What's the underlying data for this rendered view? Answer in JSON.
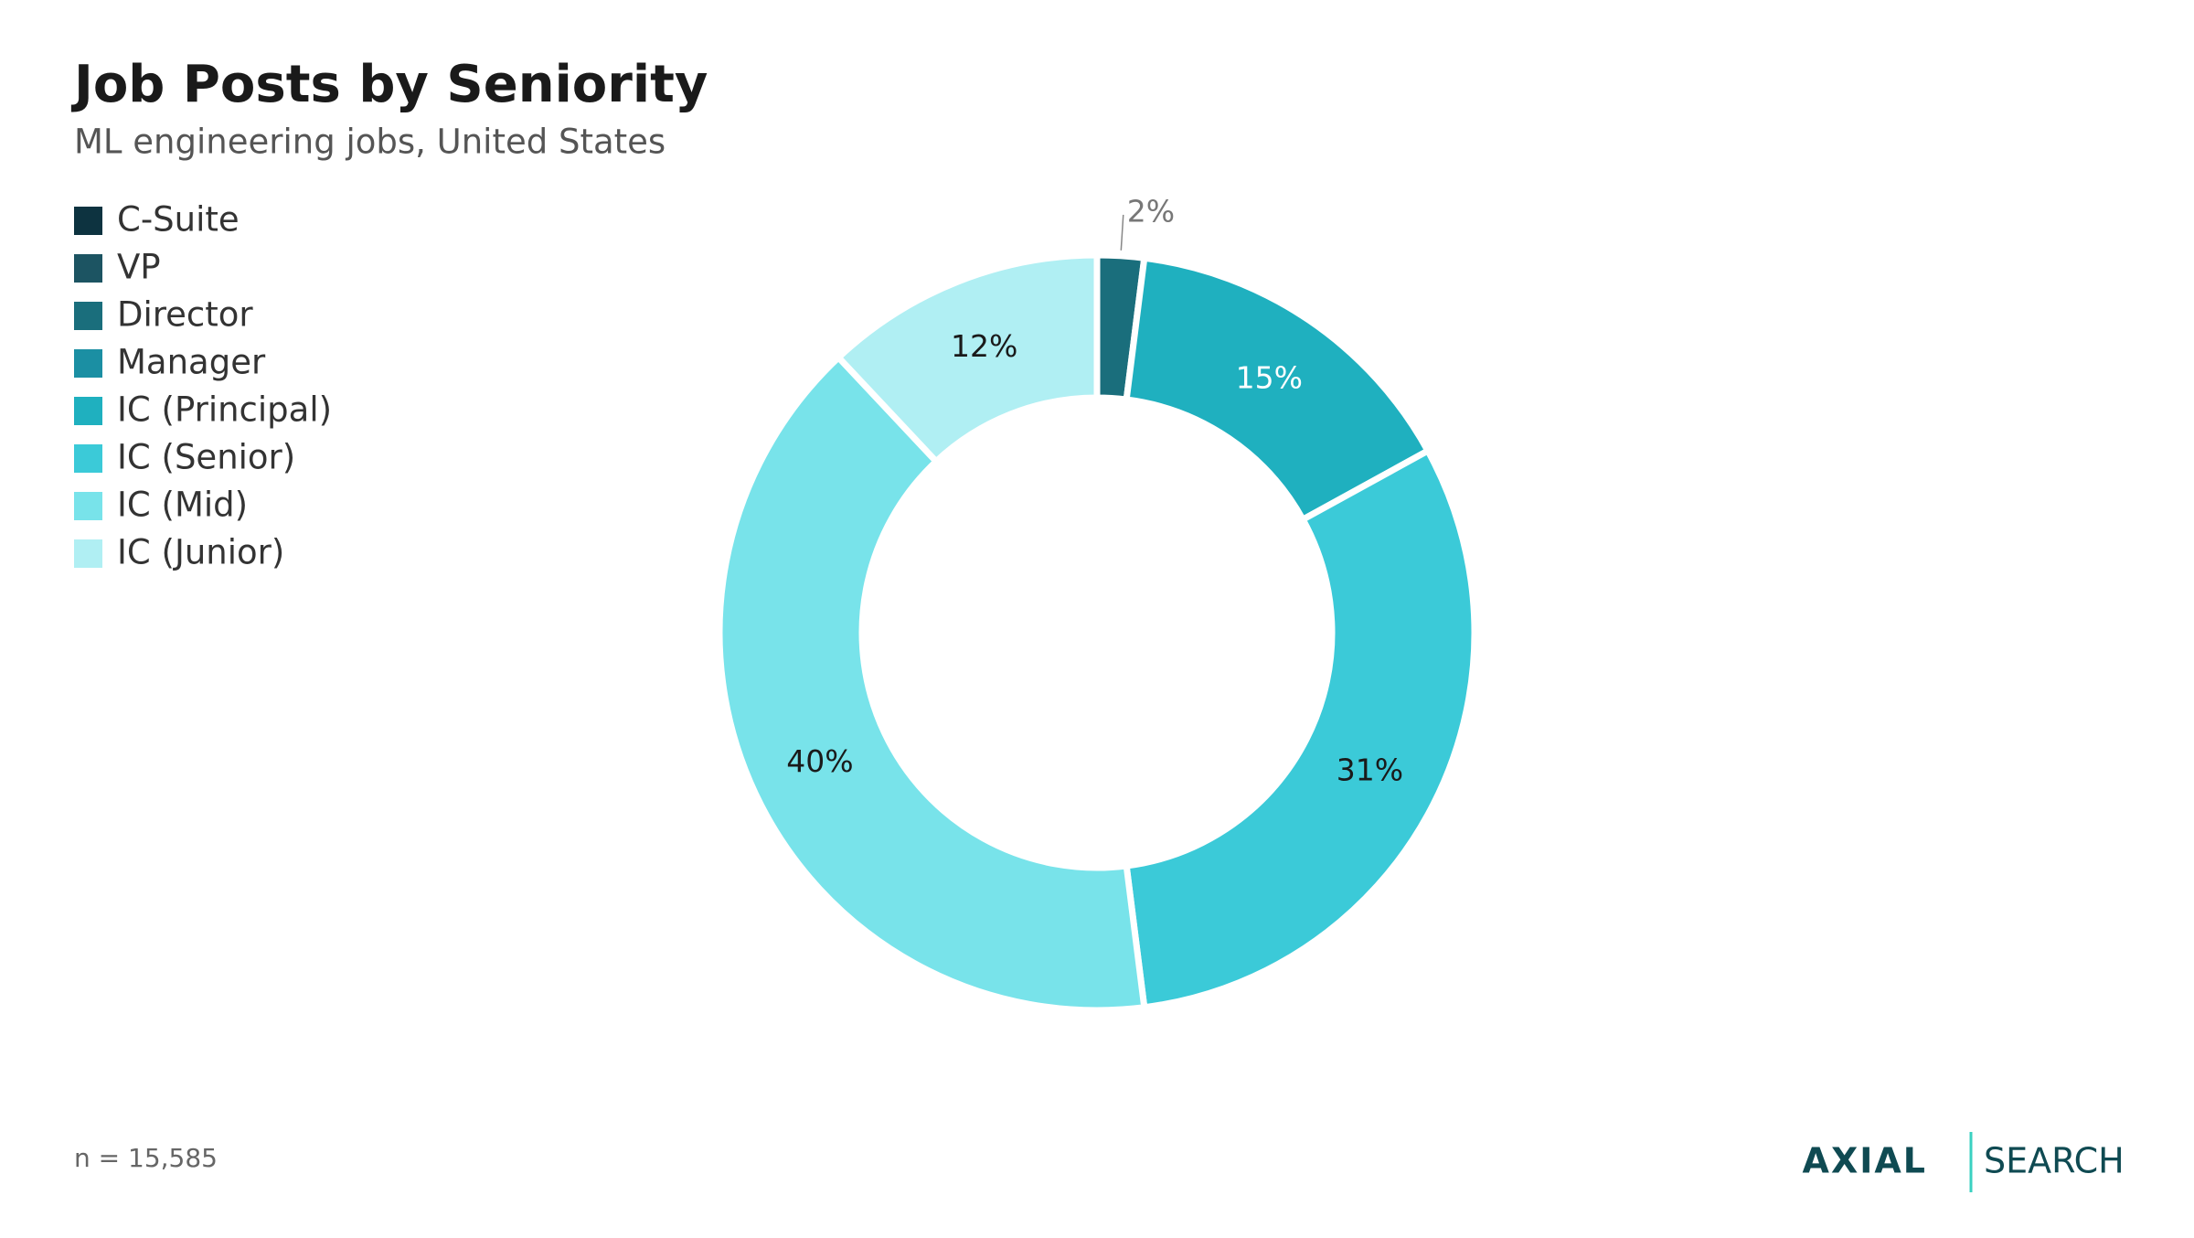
{
  "chart_data": {
    "type": "pie",
    "donut": true,
    "title": "Job Posts by Seniority",
    "subtitle": "ML engineering jobs, United States",
    "categories": [
      "C-Suite",
      "VP",
      "Director",
      "Manager",
      "IC (Principal)",
      "IC (Senior)",
      "IC (Mid)",
      "IC (Junior)"
    ],
    "values": [
      0,
      0,
      2,
      0,
      15,
      31,
      40,
      12
    ],
    "value_labels": [
      null,
      null,
      "2%",
      null,
      "15%",
      "31%",
      "40%",
      "12%"
    ],
    "colors": [
      "#0d3340",
      "#1c5462",
      "#1a6e7c",
      "#1b8fa3",
      "#1fb0bf",
      "#3bcad8",
      "#78e3ea",
      "#b0eff3"
    ],
    "legend": "top-left",
    "note": "n = 15,585",
    "brand": [
      "AXIAL",
      "SEARCH"
    ]
  }
}
